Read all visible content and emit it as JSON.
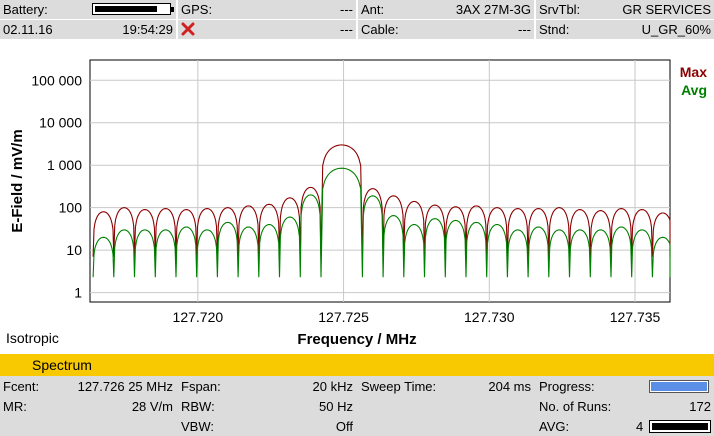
{
  "status": {
    "battery_label": "Battery:",
    "battery_level": 0.85,
    "date": "02.11.16",
    "time": "19:54:29",
    "gps_label": "GPS:",
    "gps_value": "---",
    "gps_status_icon": "red-x-icon",
    "gps_second_value": "---",
    "ant_label": "Ant:",
    "ant_value": "3AX 27M-3G",
    "cable_label": "Cable:",
    "cable_value": "---",
    "srvtbl_label": "SrvTbl:",
    "srvtbl_value": "GR SERVICES",
    "stnd_label": "Stnd:",
    "stnd_value": "U_GR_60%"
  },
  "chart_data": {
    "type": "line",
    "xlabel": "Frequency / MHz",
    "ylabel": "E-Field / mV/m",
    "yscale": "log",
    "ylim": [
      0.6,
      300000
    ],
    "xlim": [
      127.7163,
      127.7362
    ],
    "x_ticks": [
      "127.720",
      "127.725",
      "127.730",
      "127.735"
    ],
    "x_tick_values": [
      127.72,
      127.725,
      127.73,
      127.735
    ],
    "y_ticks": [
      "1",
      "10",
      "100",
      "1 000",
      "10 000",
      "100 000"
    ],
    "y_tick_values": [
      1,
      10,
      100,
      1000,
      10000,
      100000
    ],
    "grid": true,
    "legend_position": "top-right",
    "series": [
      {
        "name": "Max",
        "color": "#8b0000",
        "peak": 3000,
        "sidelobe_peaks": [
          80,
          100,
          90,
          95,
          90,
          95,
          100,
          110,
          120,
          170,
          300,
          3000,
          280,
          190,
          140,
          115,
          105,
          110,
          100,
          95,
          95,
          100,
          90,
          85,
          95,
          90,
          75
        ]
      },
      {
        "name": "Avg",
        "color": "#008000",
        "peak": 850,
        "sidelobe_peaks": [
          20,
          30,
          30,
          30,
          35,
          30,
          45,
          35,
          40,
          60,
          200,
          850,
          190,
          65,
          40,
          55,
          50,
          45,
          40,
          30,
          35,
          30,
          30,
          30,
          35,
          30,
          20
        ]
      }
    ],
    "left_note": "Isotropic"
  },
  "mode_bar": {
    "label": "Spectrum"
  },
  "bottom": {
    "fcent_label": "Fcent:",
    "fcent_value": "127.726 25 MHz",
    "mr_label": "MR:",
    "mr_value": "28 V/m",
    "fspan_label": "Fspan:",
    "fspan_value": "20 kHz",
    "rbw_label": "RBW:",
    "rbw_value": "50 Hz",
    "vbw_label": "VBW:",
    "vbw_value": "Off",
    "sweep_label": "Sweep Time:",
    "sweep_value": "204 ms",
    "progress_label": "Progress:",
    "progress_fraction": 1.0,
    "runs_label": "No. of Runs:",
    "runs_value": "172",
    "avg_label": "AVG:",
    "avg_value": "4",
    "avg_level": 1.0
  },
  "colors": {
    "panel": "#dcdcdc",
    "mode_bar": "#f8c800",
    "progress": "#5b8ee6",
    "max_trace": "#8b0000",
    "avg_trace": "#008000"
  }
}
